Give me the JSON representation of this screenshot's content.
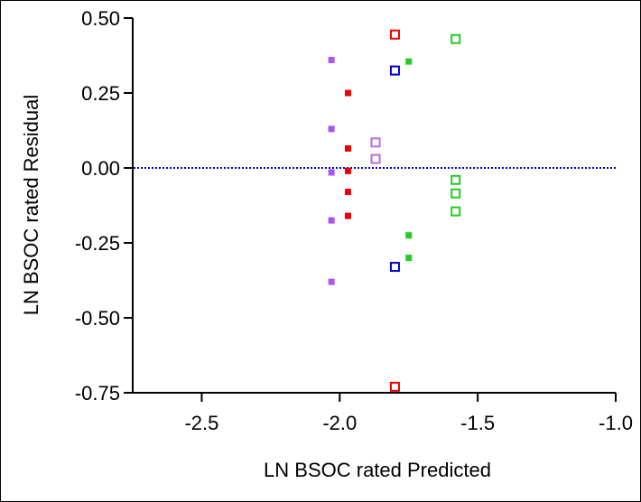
{
  "chart_data": {
    "type": "scatter",
    "title": "",
    "xlabel": "LN BSOC rated Predicted",
    "ylabel": "LN BSOC rated Residual",
    "xlim": [
      -2.75,
      -1.0
    ],
    "ylim": [
      -0.75,
      0.5
    ],
    "x_ticks": [
      -2.5,
      -2.0,
      -1.5,
      -1.0
    ],
    "x_tick_labels": [
      "-2.5",
      "-2.0",
      "-1.5",
      "-1.0"
    ],
    "y_ticks": [
      0.5,
      0.25,
      0.0,
      -0.25,
      -0.5,
      -0.75
    ],
    "y_tick_labels": [
      "0.50",
      "0.25",
      "0.00",
      "-0.25",
      "-0.50",
      "-0.75"
    ],
    "reference_line": {
      "y": 0.0,
      "color": "#0000cc",
      "style": "dotted"
    },
    "grid": false,
    "legend": "none",
    "series": [
      {
        "color": "#a855f7",
        "marker": "filled-square",
        "x": [
          -2.03,
          -2.03,
          -2.03,
          -2.03,
          -2.03
        ],
        "y": [
          0.36,
          0.13,
          -0.015,
          -0.175,
          -0.38
        ]
      },
      {
        "color": "#ee0000",
        "marker": "filled-square",
        "x": [
          -1.97,
          -1.97,
          -1.97,
          -1.97,
          -1.97
        ],
        "y": [
          0.25,
          0.065,
          -0.01,
          -0.08,
          -0.16
        ]
      },
      {
        "color": "#b26cf0",
        "marker": "open-square",
        "x": [
          -1.87,
          -1.87
        ],
        "y": [
          0.085,
          0.03
        ]
      },
      {
        "color": "#ee0000",
        "marker": "open-square",
        "x": [
          -1.8,
          -1.8
        ],
        "y": [
          0.445,
          -0.73
        ]
      },
      {
        "color": "#0000cc",
        "marker": "open-square",
        "x": [
          -1.8,
          -1.8
        ],
        "y": [
          0.325,
          -0.33
        ]
      },
      {
        "color": "#22cc22",
        "marker": "filled-square",
        "x": [
          -1.75,
          -1.75,
          -1.75
        ],
        "y": [
          0.355,
          -0.225,
          -0.3
        ]
      },
      {
        "color": "#22cc22",
        "marker": "open-square",
        "x": [
          -1.58,
          -1.58,
          -1.58,
          -1.58
        ],
        "y": [
          0.43,
          -0.04,
          -0.085,
          -0.145
        ]
      }
    ]
  }
}
